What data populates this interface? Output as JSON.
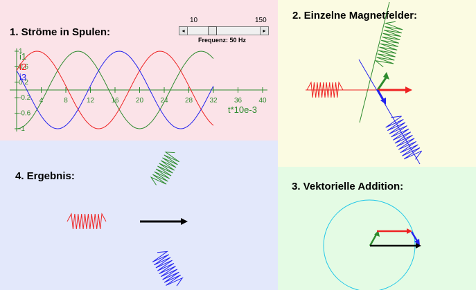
{
  "panels": {
    "p1_title": "1. Ströme in Spulen:",
    "p2_title": "2. Einzelne Magnetfelder:",
    "p3_title": "3. Vektorielle Addition:",
    "p4_title": "4. Ergebnis:"
  },
  "slider": {
    "min_label": "10",
    "max_label": "150",
    "left_arrow": "◂",
    "right_arrow": "▸",
    "frequency_label": "Frequenz: 50 Hz",
    "value": 50,
    "min": 10,
    "max": 150
  },
  "colors": {
    "i1": "#2e8b2e",
    "i2": "#ee2222",
    "i3": "#2222ee",
    "axis": "#2e8b2e",
    "result": "#000000",
    "circle": "#22c8e8"
  },
  "chart_data": {
    "type": "line",
    "xlabel": "t*10e-3",
    "ylabel": "",
    "x_ticks": [
      "4",
      "8",
      "12",
      "16",
      "20",
      "24",
      "28",
      "32",
      "36",
      "40"
    ],
    "y_tick_labels": [
      "1",
      "0.6",
      "0.2",
      "-0.2",
      "-0.6",
      "-1"
    ],
    "xlim": [
      0,
      40
    ],
    "ylim": [
      -1,
      1
    ],
    "grid": false,
    "legend_position": "top-left",
    "series": [
      {
        "name": "i1",
        "color": "#2e8b2e",
        "phase_deg": -90,
        "period_ms": 20,
        "x_end": 32
      },
      {
        "name": "i2",
        "color": "#ee2222",
        "phase_deg": 30,
        "period_ms": 20,
        "x_end": 32
      },
      {
        "name": "i3",
        "color": "#2222ee",
        "phase_deg": 150,
        "period_ms": 20,
        "x_end": 32
      }
    ]
  }
}
